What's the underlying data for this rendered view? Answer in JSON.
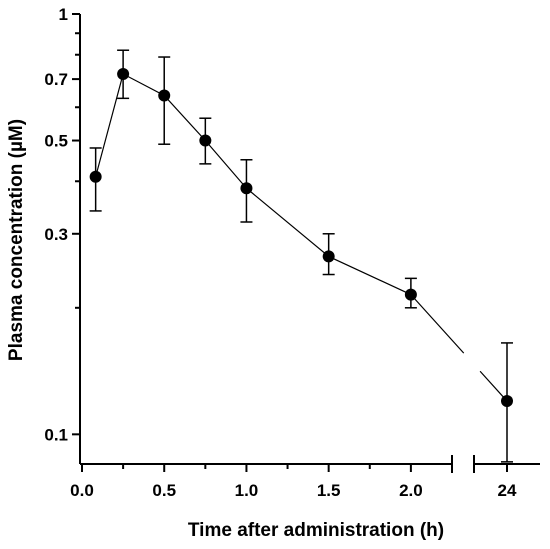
{
  "chart_data": {
    "type": "line",
    "xlabel": "Time after administration (h)",
    "ylabel": "Plasma concentration (µM)",
    "y_scale": "log",
    "ylim": [
      0.085,
      1
    ],
    "x_axis_broken": true,
    "x_segments": [
      {
        "range": [
          0,
          2.25
        ],
        "ticks": [
          0.0,
          0.5,
          1.0,
          1.5,
          2.0
        ],
        "tick_labels": [
          "0.0",
          "0.5",
          "1.0",
          "1.5",
          "2.0"
        ]
      },
      {
        "range": [
          23.5,
          24.5
        ],
        "ticks": [
          24
        ],
        "tick_labels": [
          "24"
        ]
      }
    ],
    "y_ticks": [
      0.1,
      0.3,
      0.5,
      0.7,
      1
    ],
    "y_tick_labels": [
      "0.1",
      "0.3",
      "0.5",
      "0.7",
      "1"
    ],
    "grid": false,
    "legend": "none",
    "series": [
      {
        "x": [
          0.083,
          0.25,
          0.5,
          0.75,
          1.0,
          1.5,
          2.0,
          24
        ],
        "y": [
          0.41,
          0.72,
          0.64,
          0.5,
          0.385,
          0.265,
          0.215,
          0.12
        ],
        "err_low": [
          0.34,
          0.63,
          0.49,
          0.44,
          0.32,
          0.24,
          0.2,
          0.086
        ],
        "err_high": [
          0.48,
          0.82,
          0.79,
          0.565,
          0.45,
          0.3,
          0.235,
          0.165
        ],
        "color": "#000000"
      }
    ]
  }
}
